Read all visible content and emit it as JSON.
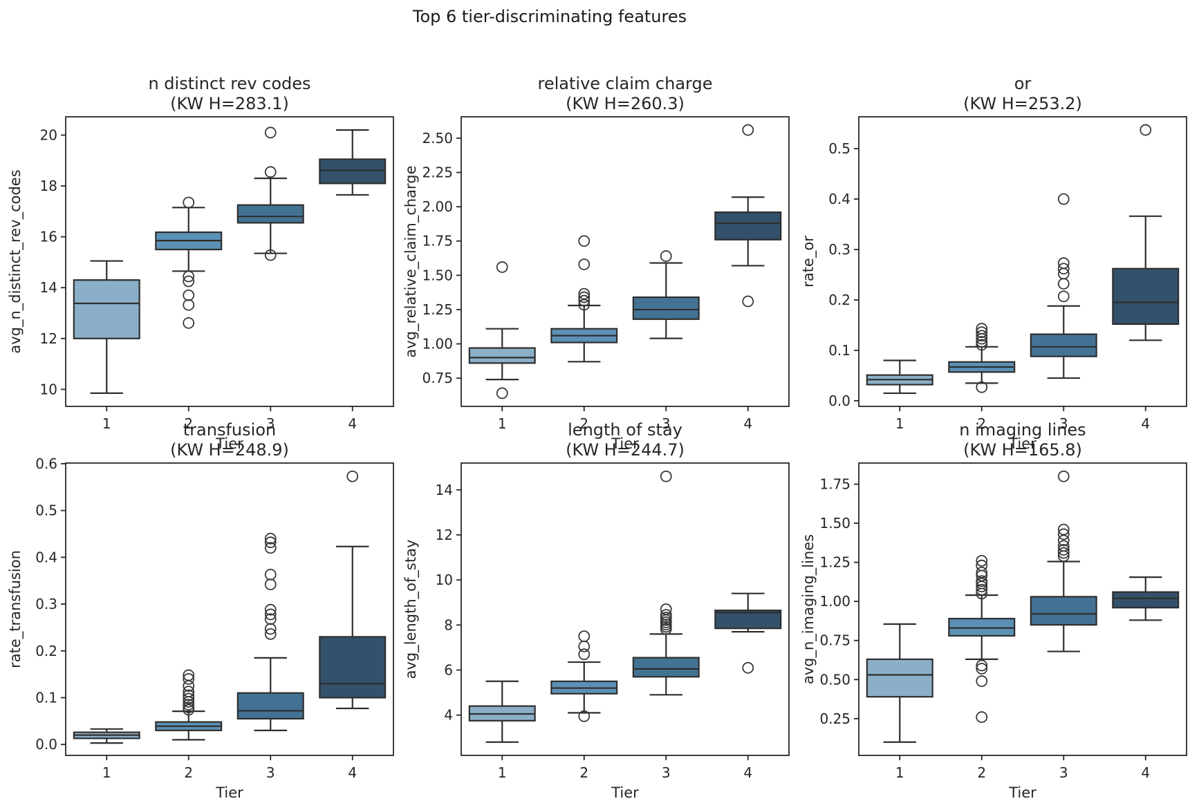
{
  "figure": {
    "title": "Top 6 tier-discriminating features",
    "xlabel": "Tier",
    "tick_color": "#262626",
    "line_color": "#2e2e2e",
    "flier_color": "#383838",
    "tier_fill_colors": [
      "#8bafc8",
      "#5b91b5",
      "#447294",
      "#33516b"
    ]
  },
  "chart_data": [
    {
      "type": "box",
      "title": "n distinct rev codes",
      "subtitle": "(KW H=283.1)",
      "kw_h": 283.1,
      "xlabel": "Tier",
      "ylabel": "avg_n_distinct_rev_codes",
      "categories": [
        "1",
        "2",
        "3",
        "4"
      ],
      "ylim": [
        9.33,
        20.72
      ],
      "yticks": [
        {
          "value": 10,
          "label": "10"
        },
        {
          "value": 12,
          "label": "12"
        },
        {
          "value": 14,
          "label": "14"
        },
        {
          "value": 16,
          "label": "16"
        },
        {
          "value": 18,
          "label": "18"
        },
        {
          "value": 20,
          "label": "20"
        }
      ],
      "series": [
        {
          "tier": "1",
          "whislo": 9.85,
          "q1": 12.0,
          "med": 13.38,
          "q3": 14.3,
          "whishi": 15.05,
          "outliers": []
        },
        {
          "tier": "2",
          "whislo": 14.65,
          "q1": 15.5,
          "med": 15.85,
          "q3": 16.18,
          "whishi": 17.15,
          "outliers": [
            17.35,
            14.44,
            14.25,
            13.7,
            13.32,
            12.61
          ]
        },
        {
          "tier": "3",
          "whislo": 15.35,
          "q1": 16.55,
          "med": 16.8,
          "q3": 17.25,
          "whishi": 18.3,
          "outliers": [
            20.1,
            18.55,
            15.28
          ]
        },
        {
          "tier": "4",
          "whislo": 17.65,
          "q1": 18.1,
          "med": 18.62,
          "q3": 19.05,
          "whishi": 20.2,
          "outliers": []
        }
      ]
    },
    {
      "type": "box",
      "title": "relative claim charge",
      "subtitle": "(KW H=260.3)",
      "kw_h": 260.3,
      "xlabel": "Tier",
      "ylabel": "avg_relative_claim_charge",
      "categories": [
        "1",
        "2",
        "3",
        "4"
      ],
      "ylim": [
        0.544,
        2.656
      ],
      "yticks": [
        {
          "value": 0.75,
          "label": "0.75"
        },
        {
          "value": 1.0,
          "label": "1.00"
        },
        {
          "value": 1.25,
          "label": "1.25"
        },
        {
          "value": 1.5,
          "label": "1.50"
        },
        {
          "value": 1.75,
          "label": "1.75"
        },
        {
          "value": 2.0,
          "label": "2.00"
        },
        {
          "value": 2.25,
          "label": "2.25"
        },
        {
          "value": 2.5,
          "label": "2.50"
        }
      ],
      "series": [
        {
          "tier": "1",
          "whislo": 0.74,
          "q1": 0.86,
          "med": 0.9,
          "q3": 0.97,
          "whishi": 1.11,
          "outliers": [
            1.56,
            0.64
          ]
        },
        {
          "tier": "2",
          "whislo": 0.87,
          "q1": 1.01,
          "med": 1.06,
          "q3": 1.11,
          "whishi": 1.28,
          "outliers": [
            1.75,
            1.58,
            1.365,
            1.34,
            1.315,
            1.285
          ]
        },
        {
          "tier": "3",
          "whislo": 1.04,
          "q1": 1.18,
          "med": 1.25,
          "q3": 1.34,
          "whishi": 1.59,
          "outliers": [
            1.64
          ]
        },
        {
          "tier": "4",
          "whislo": 1.57,
          "q1": 1.76,
          "med": 1.88,
          "q3": 1.96,
          "whishi": 2.07,
          "outliers": [
            2.56,
            1.31
          ]
        }
      ]
    },
    {
      "type": "box",
      "title": "or",
      "subtitle": "(KW H=253.2)",
      "kw_h": 253.2,
      "xlabel": "Tier",
      "ylabel": "rate_or",
      "categories": [
        "1",
        "2",
        "3",
        "4"
      ],
      "ylim": [
        -0.0111,
        0.5631
      ],
      "yticks": [
        {
          "value": 0.0,
          "label": "0.0"
        },
        {
          "value": 0.1,
          "label": "0.1"
        },
        {
          "value": 0.2,
          "label": "0.2"
        },
        {
          "value": 0.3,
          "label": "0.3"
        },
        {
          "value": 0.4,
          "label": "0.4"
        },
        {
          "value": 0.5,
          "label": "0.5"
        }
      ],
      "series": [
        {
          "tier": "1",
          "whislo": 0.015,
          "q1": 0.032,
          "med": 0.042,
          "q3": 0.051,
          "whishi": 0.08,
          "outliers": []
        },
        {
          "tier": "2",
          "whislo": 0.035,
          "q1": 0.057,
          "med": 0.067,
          "q3": 0.077,
          "whishi": 0.107,
          "outliers": [
            0.143,
            0.136,
            0.129,
            0.123,
            0.117,
            0.111,
            0.027
          ]
        },
        {
          "tier": "3",
          "whislo": 0.045,
          "q1": 0.088,
          "med": 0.107,
          "q3": 0.132,
          "whishi": 0.188,
          "outliers": [
            0.4,
            0.273,
            0.262,
            0.252,
            0.232,
            0.207
          ]
        },
        {
          "tier": "4",
          "whislo": 0.12,
          "q1": 0.152,
          "med": 0.195,
          "q3": 0.262,
          "whishi": 0.366,
          "outliers": [
            0.537
          ]
        }
      ]
    },
    {
      "type": "box",
      "title": "transfusion",
      "subtitle": "(KW H=248.9)",
      "kw_h": 248.9,
      "xlabel": "Tier",
      "ylabel": "rate_transfusion",
      "categories": [
        "1",
        "2",
        "3",
        "4"
      ],
      "ylim": [
        -0.0234,
        0.6014
      ],
      "yticks": [
        {
          "value": 0.0,
          "label": "0.0"
        },
        {
          "value": 0.1,
          "label": "0.1"
        },
        {
          "value": 0.2,
          "label": "0.2"
        },
        {
          "value": 0.3,
          "label": "0.3"
        },
        {
          "value": 0.4,
          "label": "0.4"
        },
        {
          "value": 0.5,
          "label": "0.5"
        },
        {
          "value": 0.6,
          "label": "0.6"
        }
      ],
      "series": [
        {
          "tier": "1",
          "whislo": 0.003,
          "q1": 0.013,
          "med": 0.02,
          "q3": 0.026,
          "whishi": 0.033,
          "outliers": []
        },
        {
          "tier": "2",
          "whislo": 0.01,
          "q1": 0.03,
          "med": 0.039,
          "q3": 0.048,
          "whishi": 0.071,
          "outliers": [
            0.148,
            0.14,
            0.125,
            0.113,
            0.105,
            0.098,
            0.091,
            0.085,
            0.079,
            0.074
          ]
        },
        {
          "tier": "3",
          "whislo": 0.03,
          "q1": 0.055,
          "med": 0.072,
          "q3": 0.11,
          "whishi": 0.185,
          "outliers": [
            0.44,
            0.432,
            0.42,
            0.363,
            0.342,
            0.288,
            0.278,
            0.268,
            0.247,
            0.236
          ]
        },
        {
          "tier": "4",
          "whislo": 0.077,
          "q1": 0.1,
          "med": 0.13,
          "q3": 0.23,
          "whishi": 0.423,
          "outliers": [
            0.573
          ]
        }
      ]
    },
    {
      "type": "box",
      "title": "length of stay",
      "subtitle": "(KW H=244.7)",
      "kw_h": 244.7,
      "xlabel": "Tier",
      "ylabel": "avg_length_of_stay",
      "categories": [
        "1",
        "2",
        "3",
        "4"
      ],
      "ylim": [
        2.21,
        15.19
      ],
      "yticks": [
        {
          "value": 4,
          "label": "4"
        },
        {
          "value": 6,
          "label": "6"
        },
        {
          "value": 8,
          "label": "8"
        },
        {
          "value": 10,
          "label": "10"
        },
        {
          "value": 12,
          "label": "12"
        },
        {
          "value": 14,
          "label": "14"
        }
      ],
      "series": [
        {
          "tier": "1",
          "whislo": 2.8,
          "q1": 3.75,
          "med": 4.05,
          "q3": 4.4,
          "whishi": 5.5,
          "outliers": []
        },
        {
          "tier": "2",
          "whislo": 4.1,
          "q1": 4.95,
          "med": 5.2,
          "q3": 5.5,
          "whishi": 6.35,
          "outliers": [
            7.5,
            7.05,
            6.7,
            3.95
          ]
        },
        {
          "tier": "3",
          "whislo": 4.9,
          "q1": 5.7,
          "med": 6.05,
          "q3": 6.55,
          "whishi": 7.6,
          "outliers": [
            14.6,
            8.7,
            8.45,
            8.33,
            8.22,
            8.12,
            8.02,
            7.92,
            7.82
          ]
        },
        {
          "tier": "4",
          "whislo": 7.7,
          "q1": 7.85,
          "med": 8.55,
          "q3": 8.65,
          "whishi": 9.4,
          "outliers": [
            6.1
          ]
        }
      ]
    },
    {
      "type": "box",
      "title": "n imaging lines",
      "subtitle": "(KW H=165.8)",
      "kw_h": 165.8,
      "xlabel": "Tier",
      "ylabel": "avg_n_imaging_lines",
      "categories": [
        "1",
        "2",
        "3",
        "4"
      ],
      "ylim": [
        0.015,
        1.885
      ],
      "yticks": [
        {
          "value": 0.25,
          "label": "0.25"
        },
        {
          "value": 0.5,
          "label": "0.50"
        },
        {
          "value": 0.75,
          "label": "0.75"
        },
        {
          "value": 1.0,
          "label": "1.00"
        },
        {
          "value": 1.25,
          "label": "1.25"
        },
        {
          "value": 1.5,
          "label": "1.50"
        },
        {
          "value": 1.75,
          "label": "1.75"
        }
      ],
      "series": [
        {
          "tier": "1",
          "whislo": 0.1,
          "q1": 0.39,
          "med": 0.53,
          "q3": 0.63,
          "whishi": 0.855,
          "outliers": []
        },
        {
          "tier": "2",
          "whislo": 0.63,
          "q1": 0.78,
          "med": 0.83,
          "q3": 0.89,
          "whishi": 1.04,
          "outliers": [
            1.26,
            1.23,
            1.185,
            1.165,
            1.13,
            1.115,
            1.095,
            1.075,
            1.05,
            0.59,
            0.57,
            0.49,
            0.26
          ]
        },
        {
          "tier": "3",
          "whislo": 0.68,
          "q1": 0.85,
          "med": 0.92,
          "q3": 1.03,
          "whishi": 1.255,
          "outliers": [
            1.8,
            1.46,
            1.43,
            1.39,
            1.355,
            1.33,
            1.31,
            1.29
          ]
        },
        {
          "tier": "4",
          "whislo": 0.88,
          "q1": 0.96,
          "med": 1.02,
          "q3": 1.06,
          "whishi": 1.155,
          "outliers": []
        }
      ]
    }
  ]
}
